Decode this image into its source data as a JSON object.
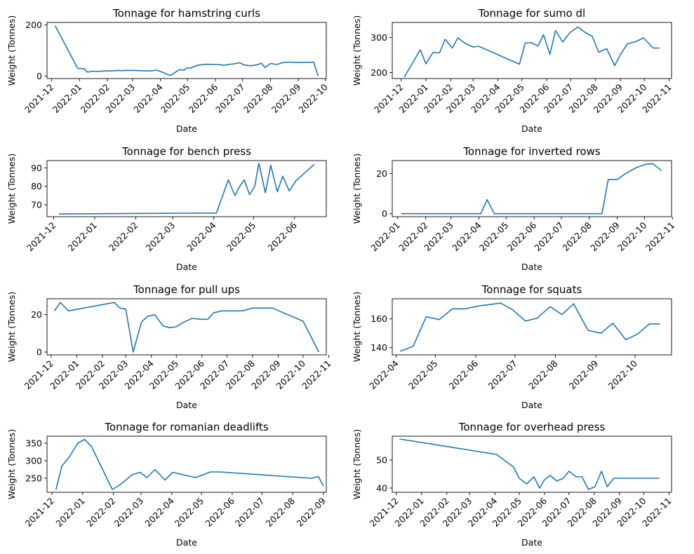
{
  "figure": {
    "line_color": "#1f77b4",
    "background": "#ffffff"
  },
  "chart_data": [
    {
      "type": "line",
      "title": "Tonnage for hamstring curls",
      "xlabel": "Date",
      "ylabel": "Weight (Tonnes)",
      "x_ticks": [
        "2021-12",
        "2022-01",
        "2022-02",
        "2022-03",
        "2022-04",
        "2022-05",
        "2022-06",
        "2022-07",
        "2022-08",
        "2022-09",
        "2022-10"
      ],
      "y_ticks": [
        0,
        200
      ],
      "xlim": [
        "2021-11-26",
        "2022-10-02"
      ],
      "ylim": [
        -10,
        210
      ],
      "series": [
        {
          "x": [
            "2021-12-05",
            "2021-12-30",
            "2022-01-06",
            "2022-01-10",
            "2022-01-15",
            "2022-01-22",
            "2022-01-30",
            "2022-02-06",
            "2022-02-13",
            "2022-02-17",
            "2022-02-22",
            "2022-03-01",
            "2022-03-08",
            "2022-03-15",
            "2022-03-22",
            "2022-03-28",
            "2022-04-12",
            "2022-04-22",
            "2022-04-27",
            "2022-04-30",
            "2022-05-05",
            "2022-05-12",
            "2022-05-22",
            "2022-05-30",
            "2022-06-05",
            "2022-06-10",
            "2022-06-15",
            "2022-06-22",
            "2022-06-28",
            "2022-07-03",
            "2022-07-10",
            "2022-07-17",
            "2022-07-22",
            "2022-07-26",
            "2022-08-01",
            "2022-08-08",
            "2022-08-14",
            "2022-08-22",
            "2022-08-28",
            "2022-09-05",
            "2022-09-18",
            "2022-09-23"
          ],
          "y": [
            197,
            30,
            29,
            15,
            19,
            18,
            20,
            20,
            22,
            21,
            22,
            22,
            21,
            20,
            20,
            23,
            2,
            25,
            23,
            31,
            32,
            42,
            46,
            45,
            45,
            42,
            45,
            48,
            52,
            43,
            40,
            44,
            50,
            33,
            49,
            45,
            52,
            55,
            53,
            53,
            54,
            0
          ]
        }
      ]
    },
    {
      "type": "line",
      "title": "Tonnage for sumo dl",
      "xlabel": "Date",
      "ylabel": "Weight (Tonnes)",
      "x_ticks": [
        "2021-12",
        "2022-01",
        "2022-02",
        "2022-03",
        "2022-04",
        "2022-05",
        "2022-06",
        "2022-07",
        "2022-08",
        "2022-09",
        "2022-10",
        "2022-11"
      ],
      "y_ticks": [
        200,
        300
      ],
      "xlim": [
        "2021-11-20",
        "2022-11-04"
      ],
      "ylim": [
        183,
        343
      ],
      "series": [
        {
          "x": [
            "2021-12-05",
            "2021-12-25",
            "2022-01-01",
            "2022-01-10",
            "2022-01-18",
            "2022-01-25",
            "2022-02-03",
            "2022-02-10",
            "2022-02-20",
            "2022-03-01",
            "2022-03-08",
            "2022-04-28",
            "2022-05-05",
            "2022-05-12",
            "2022-05-21",
            "2022-05-28",
            "2022-06-05",
            "2022-06-12",
            "2022-06-21",
            "2022-06-30",
            "2022-07-10",
            "2022-07-18",
            "2022-07-28",
            "2022-08-05",
            "2022-08-15",
            "2022-08-25",
            "2022-09-02",
            "2022-09-10",
            "2022-09-20",
            "2022-09-30",
            "2022-10-12",
            "2022-10-20"
          ],
          "y": [
            187,
            265,
            225,
            258,
            256,
            295,
            270,
            299,
            282,
            273,
            275,
            224,
            284,
            286,
            276,
            308,
            252,
            320,
            287,
            314,
            330,
            316,
            303,
            258,
            268,
            220,
            255,
            282,
            288,
            299,
            270,
            270
          ]
        }
      ]
    },
    {
      "type": "line",
      "title": "Tonnage for bench press",
      "xlabel": "Date",
      "ylabel": "Weight (Tonnes)",
      "x_ticks": [
        "2021-12",
        "2022-01",
        "2022-02",
        "2022-03",
        "2022-04",
        "2022-05",
        "2022-06"
      ],
      "y_ticks": [
        70,
        80,
        90
      ],
      "xlim": [
        "2021-11-26",
        "2022-06-25"
      ],
      "ylim": [
        63.5,
        94
      ],
      "series": [
        {
          "x": [
            "2021-12-05",
            "2022-04-03",
            "2022-04-12",
            "2022-04-17",
            "2022-04-21",
            "2022-04-24",
            "2022-04-28",
            "2022-05-02",
            "2022-05-05",
            "2022-05-10",
            "2022-05-14",
            "2022-05-19",
            "2022-05-23",
            "2022-05-28",
            "2022-06-02",
            "2022-06-16"
          ],
          "y": [
            65,
            65.5,
            83.5,
            75,
            80.5,
            83.5,
            75.5,
            80,
            92.5,
            76.5,
            91.5,
            77,
            85.5,
            77.5,
            83,
            92
          ]
        }
      ]
    },
    {
      "type": "line",
      "title": "Tonnage for inverted rows",
      "xlabel": "Date",
      "ylabel": "Weight (Tonnes)",
      "x_ticks": [
        "2022-01",
        "2022-02",
        "2022-03",
        "2022-04",
        "2022-05",
        "2022-06",
        "2022-07",
        "2022-08",
        "2022-09",
        "2022-10",
        "2022-11"
      ],
      "y_ticks": [
        0,
        20
      ],
      "xlim": [
        "2021-12-26",
        "2022-10-31"
      ],
      "ylim": [
        -1.5,
        26.5
      ],
      "series": [
        {
          "x": [
            "2022-01-05",
            "2022-04-03",
            "2022-04-10",
            "2022-04-18",
            "2022-08-15",
            "2022-08-22",
            "2022-09-01",
            "2022-09-10",
            "2022-09-22",
            "2022-10-01",
            "2022-10-10",
            "2022-10-20"
          ],
          "y": [
            0,
            0,
            7,
            0,
            0,
            17,
            17,
            20,
            23,
            24.5,
            25,
            21.5
          ]
        }
      ]
    },
    {
      "type": "line",
      "title": "Tonnage for pull ups",
      "xlabel": "Date",
      "ylabel": "Weight (Tonnes)",
      "x_ticks": [
        "2021-12",
        "2022-01",
        "2022-02",
        "2022-03",
        "2022-04",
        "2022-05",
        "2022-06",
        "2022-07",
        "2022-08",
        "2022-09",
        "2022-10",
        "2022-11"
      ],
      "y_ticks": [
        0,
        20
      ],
      "xlim": [
        "2021-11-26",
        "2022-10-29"
      ],
      "ylim": [
        -1.5,
        28.5
      ],
      "series": [
        {
          "x": [
            "2021-12-05",
            "2021-12-12",
            "2021-12-22",
            "2022-02-15",
            "2022-02-22",
            "2022-03-01",
            "2022-03-10",
            "2022-03-20",
            "2022-03-27",
            "2022-04-05",
            "2022-04-15",
            "2022-04-23",
            "2022-05-01",
            "2022-05-10",
            "2022-05-20",
            "2022-05-30",
            "2022-06-08",
            "2022-06-15",
            "2022-06-25",
            "2022-07-10",
            "2022-07-20",
            "2022-08-01",
            "2022-08-15",
            "2022-08-25",
            "2022-10-01",
            "2022-10-20"
          ],
          "y": [
            22,
            26.5,
            22,
            26.5,
            23.5,
            23,
            0,
            16,
            19,
            20,
            14,
            13,
            13.5,
            16,
            18,
            17.5,
            17.5,
            21,
            22,
            22,
            22,
            23.5,
            23.5,
            23.5,
            16.5,
            0
          ]
        }
      ]
    },
    {
      "type": "line",
      "title": "Tonnage for squats",
      "xlabel": "Date",
      "ylabel": "Weight (Tonnes)",
      "x_ticks": [
        "2022-04",
        "2022-05",
        "2022-06",
        "2022-07",
        "2022-08",
        "2022-09",
        "2022-10"
      ],
      "y_ticks": [
        140,
        160
      ],
      "xlim": [
        "2022-03-29",
        "2022-10-29"
      ],
      "ylim": [
        135,
        174
      ],
      "series": [
        {
          "x": [
            "2022-04-04",
            "2022-04-14",
            "2022-04-24",
            "2022-05-04",
            "2022-05-14",
            "2022-05-24",
            "2022-06-03",
            "2022-06-12",
            "2022-06-20",
            "2022-06-29",
            "2022-07-09",
            "2022-07-18",
            "2022-07-28",
            "2022-08-06",
            "2022-08-15",
            "2022-08-26",
            "2022-09-05",
            "2022-09-14",
            "2022-09-24",
            "2022-10-03",
            "2022-10-12",
            "2022-10-20"
          ],
          "y": [
            137.5,
            141,
            161.5,
            159.5,
            167,
            167,
            169,
            170,
            171,
            166.5,
            158.5,
            160.5,
            168.5,
            163,
            170.5,
            152,
            150,
            157,
            145.5,
            149.5,
            156.5,
            156.5
          ]
        }
      ]
    },
    {
      "type": "line",
      "title": "Tonnage for romanian deadlifts",
      "xlabel": "Date",
      "ylabel": "Weight (Tonnes)",
      "x_ticks": [
        "2021-12",
        "2022-01",
        "2022-02",
        "2022-03",
        "2022-04",
        "2022-05",
        "2022-06",
        "2022-07",
        "2022-08",
        "2022-09"
      ],
      "y_ticks": [
        250,
        300,
        350
      ],
      "xlim": [
        "2021-11-26",
        "2022-09-04"
      ],
      "ylim": [
        210,
        370
      ],
      "series": [
        {
          "x": [
            "2021-12-05",
            "2021-12-11",
            "2021-12-19",
            "2021-12-27",
            "2022-01-03",
            "2022-01-10",
            "2022-01-31",
            "2022-02-08",
            "2022-02-20",
            "2022-02-28",
            "2022-03-07",
            "2022-03-15",
            "2022-03-25",
            "2022-04-02",
            "2022-04-25",
            "2022-05-10",
            "2022-05-20",
            "2022-08-20",
            "2022-08-27",
            "2022-09-01"
          ],
          "y": [
            217,
            285,
            313,
            350,
            361,
            340,
            218,
            232,
            260,
            267,
            252,
            275,
            245,
            267,
            252,
            268,
            268,
            250,
            255,
            228
          ]
        }
      ]
    },
    {
      "type": "line",
      "title": "Tonnage for overhead press",
      "xlabel": "Date",
      "ylabel": "Weight (Tonnes)",
      "x_ticks": [
        "2021-12",
        "2022-01",
        "2022-02",
        "2022-03",
        "2022-04",
        "2022-05",
        "2022-06",
        "2022-07",
        "2022-08",
        "2022-09",
        "2022-10",
        "2022-11"
      ],
      "y_ticks": [
        40,
        50
      ],
      "xlim": [
        "2021-11-26",
        "2022-11-04"
      ],
      "ylim": [
        38.5,
        58.5
      ],
      "series": [
        {
          "x": [
            "2021-12-05",
            "2022-04-03",
            "2022-04-24",
            "2022-05-01",
            "2022-05-10",
            "2022-05-19",
            "2022-05-26",
            "2022-06-01",
            "2022-06-08",
            "2022-06-16",
            "2022-06-24",
            "2022-07-01",
            "2022-07-10",
            "2022-07-17",
            "2022-07-25",
            "2022-08-02",
            "2022-08-10",
            "2022-08-17",
            "2022-08-25",
            "2022-09-01",
            "2022-09-08",
            "2022-09-16",
            "2022-09-25",
            "2022-10-20"
          ],
          "y": [
            57.5,
            52,
            47.5,
            43.5,
            41.5,
            44,
            40,
            43,
            44.5,
            42.5,
            43.5,
            46,
            44,
            44,
            39.5,
            40.5,
            46,
            40.5,
            43.5,
            43.5,
            43.5,
            43.5,
            43.5,
            43.5
          ]
        }
      ]
    }
  ]
}
